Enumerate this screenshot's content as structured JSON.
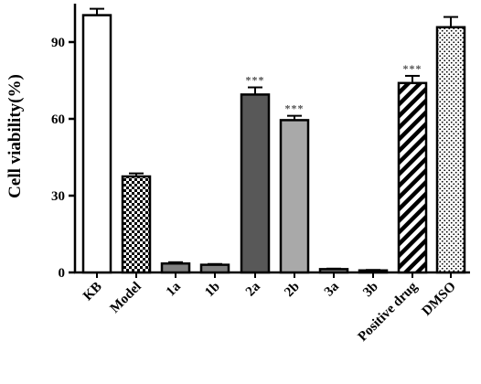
{
  "chart_data": {
    "type": "bar",
    "ylabel": "Cell viability(%)",
    "xlabel": "",
    "ylim": [
      0,
      105
    ],
    "yticks": [
      0,
      30,
      60,
      90
    ],
    "categories": [
      "KB",
      "Model",
      "1a",
      "1b",
      "2a",
      "2b",
      "3a",
      "3b",
      "Positive drug",
      "DMSO"
    ],
    "values": [
      100.5,
      37.5,
      3.5,
      3.0,
      69.5,
      59.5,
      1.3,
      0.8,
      74.0,
      95.8
    ],
    "errors": [
      2.5,
      1.2,
      0.5,
      0.3,
      2.8,
      1.7,
      0.2,
      0.2,
      2.8,
      4.0
    ],
    "significance": [
      "",
      "",
      "",
      "",
      "***",
      "***",
      "",
      "",
      "***",
      ""
    ],
    "fills": [
      "white",
      "checker",
      "gray",
      "gray",
      "darkgray",
      "lightgray",
      "gray",
      "gray",
      "diagonal-stripes",
      "dots"
    ],
    "colors": {
      "gray": "#808080",
      "darkgray": "#585858",
      "lightgray": "#a9a9a9",
      "sig": "#555555",
      "axis": "#000000"
    }
  }
}
